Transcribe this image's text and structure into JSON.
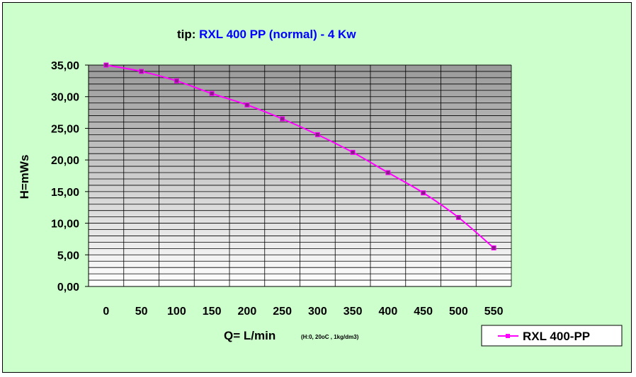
{
  "chart_data": {
    "type": "line",
    "title_prefix": "tip: ",
    "title_main": "RXL 400 PP (normal)  - 4 Kw",
    "xlabel": "Q= L/min",
    "xlabel_note": "(H:0, 20oC , 1kg/dm3)",
    "ylabel": "H=mWs",
    "x_ticks": [
      "0",
      "50",
      "100",
      "150",
      "200",
      "250",
      "300",
      "350",
      "400",
      "450",
      "500",
      "550"
    ],
    "y_ticks": [
      "0,00",
      "5,00",
      "10,00",
      "15,00",
      "20,00",
      "25,00",
      "30,00",
      "35,00"
    ],
    "ylim": [
      0,
      35
    ],
    "grid": true,
    "legend_position": "bottom-right",
    "series": [
      {
        "name": "RXL 400-PP",
        "color": "#ff00ff",
        "x": [
          0,
          50,
          100,
          150,
          200,
          250,
          300,
          350,
          400,
          450,
          500,
          550
        ],
        "values": [
          35.0,
          34.0,
          32.5,
          30.5,
          28.7,
          26.5,
          24.0,
          21.2,
          18.0,
          14.8,
          10.9,
          6.1
        ]
      }
    ],
    "colors": {
      "background": "#ccffcc",
      "plot_top": "#999999",
      "plot_bottom": "#ffffff",
      "title_accent": "#0000ff"
    }
  }
}
